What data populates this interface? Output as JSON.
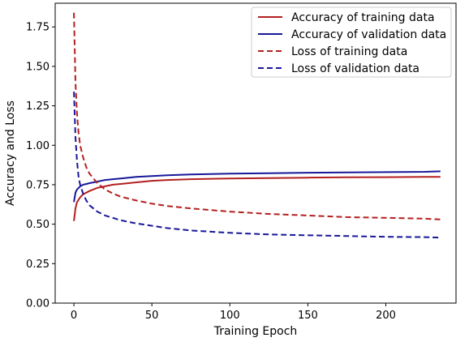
{
  "chart_data": {
    "type": "line",
    "title": "",
    "xlabel": "Training Epoch",
    "ylabel": "Accuracy and Loss",
    "xlim": [
      -12,
      245
    ],
    "ylim": [
      0.0,
      1.9
    ],
    "xticks": [
      0,
      50,
      100,
      150,
      200
    ],
    "xtick_labels": [
      "0",
      "50",
      "100",
      "150",
      "200"
    ],
    "yticks": [
      0.0,
      0.25,
      0.5,
      0.75,
      1.0,
      1.25,
      1.5,
      1.75
    ],
    "ytick_labels": [
      "0.00",
      "0.25",
      "0.50",
      "0.75",
      "1.00",
      "1.25",
      "1.50",
      "1.75"
    ],
    "grid": false,
    "legend_position": "upper right",
    "colors": {
      "red": "#b41f1f",
      "blue": "#17179a"
    },
    "series": [
      {
        "name": "Accuracy of training data",
        "style": "solid",
        "color": "#b41f1f",
        "x": [
          0,
          1,
          2,
          4,
          6,
          8,
          10,
          15,
          20,
          25,
          30,
          40,
          50,
          60,
          75,
          100,
          125,
          150,
          175,
          200,
          225,
          235
        ],
        "y": [
          0.52,
          0.6,
          0.64,
          0.67,
          0.69,
          0.7,
          0.71,
          0.73,
          0.74,
          0.75,
          0.755,
          0.765,
          0.775,
          0.78,
          0.785,
          0.79,
          0.792,
          0.795,
          0.797,
          0.798,
          0.8,
          0.8
        ]
      },
      {
        "name": "Accuracy of validation data",
        "style": "solid",
        "color": "#17179a",
        "x": [
          0,
          1,
          2,
          4,
          6,
          8,
          10,
          15,
          20,
          25,
          30,
          40,
          50,
          60,
          75,
          100,
          125,
          150,
          175,
          200,
          225,
          235
        ],
        "y": [
          0.64,
          0.7,
          0.72,
          0.74,
          0.75,
          0.755,
          0.76,
          0.77,
          0.78,
          0.785,
          0.79,
          0.8,
          0.805,
          0.81,
          0.815,
          0.82,
          0.823,
          0.826,
          0.828,
          0.83,
          0.832,
          0.835
        ]
      },
      {
        "name": "Loss of training data",
        "style": "dashed",
        "color": "#b41f1f",
        "x": [
          0,
          1,
          2,
          3,
          4,
          6,
          8,
          10,
          15,
          20,
          25,
          30,
          40,
          50,
          60,
          75,
          100,
          125,
          150,
          175,
          200,
          225,
          235
        ],
        "y": [
          1.84,
          1.4,
          1.2,
          1.08,
          1.0,
          0.92,
          0.86,
          0.82,
          0.76,
          0.72,
          0.695,
          0.675,
          0.65,
          0.63,
          0.615,
          0.6,
          0.58,
          0.565,
          0.555,
          0.545,
          0.54,
          0.535,
          0.53
        ]
      },
      {
        "name": "Loss of validation data",
        "style": "dashed",
        "color": "#17179a",
        "x": [
          0,
          1,
          2,
          3,
          4,
          6,
          8,
          10,
          15,
          20,
          25,
          30,
          40,
          50,
          60,
          75,
          100,
          125,
          150,
          175,
          200,
          225,
          235
        ],
        "y": [
          1.34,
          1.05,
          0.9,
          0.8,
          0.75,
          0.69,
          0.65,
          0.62,
          0.58,
          0.555,
          0.54,
          0.525,
          0.505,
          0.49,
          0.475,
          0.46,
          0.445,
          0.435,
          0.43,
          0.425,
          0.42,
          0.418,
          0.415
        ]
      }
    ]
  }
}
